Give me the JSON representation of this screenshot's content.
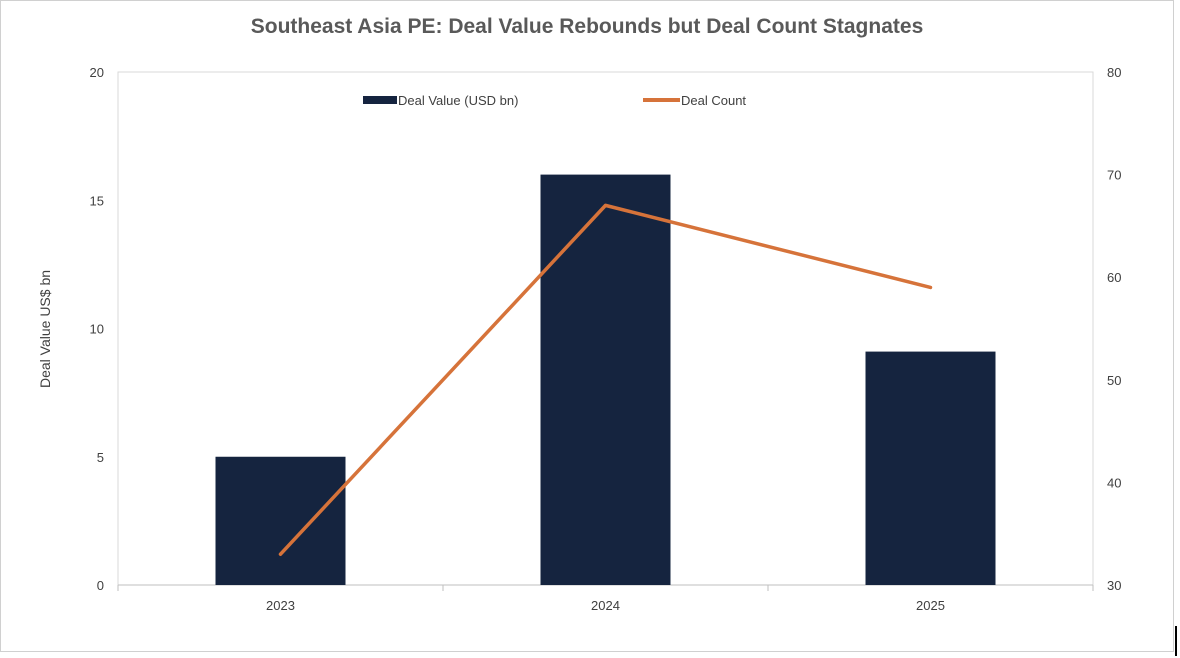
{
  "chart_data": {
    "type": "bar",
    "title": "Southeast Asia PE: Deal Value Rebounds but Deal Count Stagnates",
    "categories": [
      "2023",
      "2024",
      "2025"
    ],
    "series": [
      {
        "name": "Deal Value (USD bn)",
        "type": "bar",
        "axis": "left",
        "values": [
          5.0,
          16.0,
          9.1
        ],
        "color": "#15243f"
      },
      {
        "name": "Deal Count",
        "type": "line",
        "axis": "right",
        "values": [
          33,
          67,
          59
        ],
        "color": "#d6733a"
      }
    ],
    "ylabel": "Deal Value US$ bn",
    "y2label": "",
    "ylim": [
      0,
      20
    ],
    "y2lim": [
      30,
      80
    ],
    "yticks": [
      "0",
      "5",
      "10",
      "15",
      "20"
    ],
    "y2ticks": [
      "30",
      "40",
      "50",
      "60",
      "70",
      "80"
    ],
    "grid": false,
    "legend_position": "top-center"
  }
}
